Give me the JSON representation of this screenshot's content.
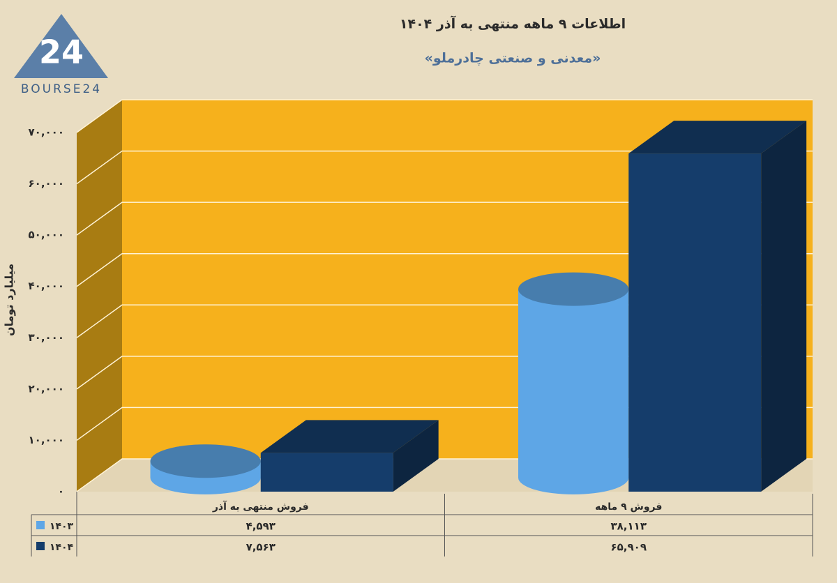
{
  "logo": {
    "mark": "24",
    "text": "BOURSE24"
  },
  "chart_data": {
    "type": "bar3d",
    "title": "اطلاعات ۹ ماهه منتهی به آذر ۱۴۰۴",
    "subtitle": "«معدنی و صنعتی چادرملو»",
    "y_label": "میلیارد تومان",
    "categories": [
      "فروش منتهی به آذر",
      "فروش ۹ ماهه"
    ],
    "series": [
      {
        "name": "۱۴۰۳",
        "color": "#5ea6e6",
        "shape": "cylinder",
        "values": [
          4593,
          38113
        ],
        "value_labels": [
          "۴,۵۹۳",
          "۳۸,۱۱۳"
        ]
      },
      {
        "name": "۱۴۰۴",
        "color": "#153d6b",
        "shape": "box",
        "values": [
          7563,
          65909
        ],
        "value_labels": [
          "۷,۵۶۳",
          "۶۵,۹۰۹"
        ]
      }
    ],
    "ylim": [
      0,
      70000
    ],
    "yticks": [
      {
        "value": 0,
        "label": "۰"
      },
      {
        "value": 10000,
        "label": "۱۰,۰۰۰"
      },
      {
        "value": 20000,
        "label": "۲۰,۰۰۰"
      },
      {
        "value": 30000,
        "label": "۳۰,۰۰۰"
      },
      {
        "value": 40000,
        "label": "۴۰,۰۰۰"
      },
      {
        "value": 50000,
        "label": "۵۰,۰۰۰"
      },
      {
        "value": 60000,
        "label": "۶۰,۰۰۰"
      },
      {
        "value": 70000,
        "label": "۷۰,۰۰۰"
      }
    ],
    "grid": true
  }
}
